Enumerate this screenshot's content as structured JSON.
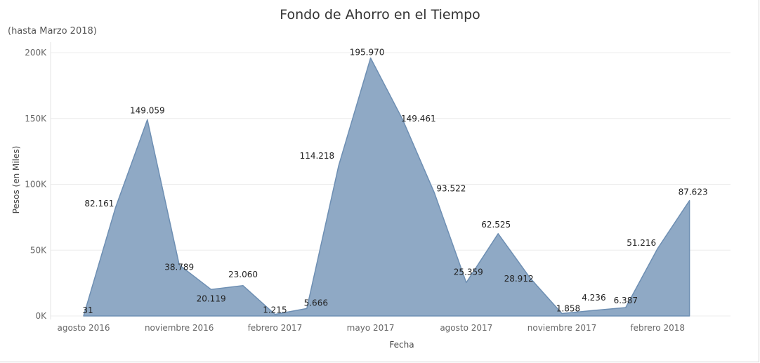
{
  "chart_data": {
    "type": "area",
    "title": "Fondo de Ahorro en el Tiempo",
    "subtitle": "(hasta Marzo 2018)",
    "xlabel": "Fecha",
    "ylabel": "Pesos (en Miles)",
    "ylim": [
      0,
      200000
    ],
    "yticks": [
      {
        "value": 0,
        "label": "0K"
      },
      {
        "value": 50000,
        "label": "50K"
      },
      {
        "value": 100000,
        "label": "100K"
      },
      {
        "value": 150000,
        "label": "150K"
      },
      {
        "value": 200000,
        "label": "200K"
      }
    ],
    "xticks": [
      {
        "month": "2016-08",
        "label": "agosto 2016"
      },
      {
        "month": "2016-11",
        "label": "noviembre 2016"
      },
      {
        "month": "2017-02",
        "label": "febrero 2017"
      },
      {
        "month": "2017-05",
        "label": "mayo 2017"
      },
      {
        "month": "2017-08",
        "label": "agosto 2017"
      },
      {
        "month": "2017-11",
        "label": "noviembre 2017"
      },
      {
        "month": "2018-02",
        "label": "febrero 2018"
      }
    ],
    "x": [
      "2016-08",
      "2016-09",
      "2016-10",
      "2016-11",
      "2016-12",
      "2017-01",
      "2017-02",
      "2017-03",
      "2017-04",
      "2017-05",
      "2017-06",
      "2017-07",
      "2017-08",
      "2017-09",
      "2017-10",
      "2017-11",
      "2017-12",
      "2018-01",
      "2018-02",
      "2018-03"
    ],
    "values": [
      31,
      82161,
      149059,
      38789,
      20119,
      23060,
      1215,
      5666,
      114218,
      195970,
      149461,
      93522,
      25359,
      62525,
      28912,
      1858,
      4236,
      6387,
      51216,
      87623
    ],
    "labels": [
      "31",
      "82.161",
      "149.059",
      "38.789",
      "20.119",
      "23.060",
      "1.215",
      "5.666",
      "114.218",
      "195.970",
      "149.461",
      "93.522",
      "25.359",
      "62.525",
      "28.912",
      "1.858",
      "4.236",
      "6.387",
      "51.216",
      "87.623"
    ],
    "colors": {
      "fill": "#8fa9c5",
      "stroke": "#6e8fb3",
      "grid": "#ececec"
    },
    "grid": true,
    "legend": "none"
  }
}
